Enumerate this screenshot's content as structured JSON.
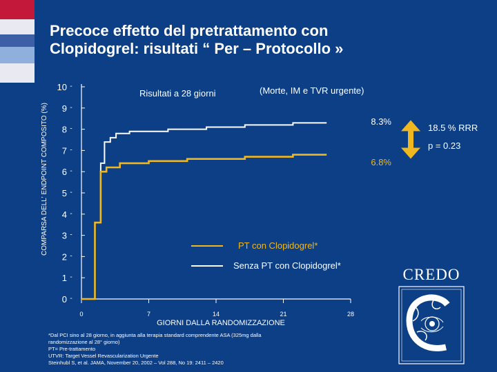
{
  "slide": {
    "title_line1": "Precoce effetto del pretrattamento con",
    "title_line2": "Clopidogrel:  risultati “ Per – Protocollo »",
    "background_color": "#0c3f86",
    "strip_colors": [
      "#c3183a",
      "#e9e9f1",
      "#3c5fa6",
      "#8fb0dc",
      "#e9e9f1"
    ]
  },
  "chart_data": {
    "type": "line",
    "subtitle": "Risultati a 28 giorni",
    "subtitle2": "(Morte, IM e TVR urgente)",
    "xlabel": "GIORNI DALLA RANDOMIZZAZIONE",
    "ylabel": "COMPARSA DELL' ENDPOINT COMPOSITO (%)",
    "xlim": [
      0,
      28
    ],
    "ylim": [
      0,
      10
    ],
    "x_ticks": [
      0,
      7,
      14,
      21,
      28
    ],
    "y_ticks": [
      0,
      1,
      2,
      3,
      4,
      5,
      6,
      7,
      8,
      9,
      10
    ],
    "series": [
      {
        "name": "Senza PT con Clopidogrel*",
        "color": "#ffffff",
        "end_label": "8.3%",
        "points": [
          [
            0,
            0
          ],
          [
            1.4,
            0
          ],
          [
            1.4,
            3.6
          ],
          [
            2.0,
            3.6
          ],
          [
            2.0,
            6.4
          ],
          [
            2.4,
            6.4
          ],
          [
            2.4,
            7.4
          ],
          [
            3.0,
            7.4
          ],
          [
            3.0,
            7.6
          ],
          [
            3.6,
            7.6
          ],
          [
            3.6,
            7.8
          ],
          [
            5.0,
            7.8
          ],
          [
            5.0,
            7.9
          ],
          [
            9.0,
            7.9
          ],
          [
            9.0,
            8.0
          ],
          [
            13.0,
            8.0
          ],
          [
            13.0,
            8.1
          ],
          [
            17.0,
            8.1
          ],
          [
            17.0,
            8.2
          ],
          [
            22.0,
            8.2
          ],
          [
            22.0,
            8.3
          ],
          [
            25.5,
            8.3
          ]
        ]
      },
      {
        "name": "PT con Clopidogrel*",
        "color": "#f0b820",
        "end_label": "6.8%",
        "points": [
          [
            0,
            0
          ],
          [
            1.4,
            0
          ],
          [
            1.4,
            3.6
          ],
          [
            2.0,
            3.6
          ],
          [
            2.0,
            6.0
          ],
          [
            2.6,
            6.0
          ],
          [
            2.6,
            6.2
          ],
          [
            4.0,
            6.2
          ],
          [
            4.0,
            6.4
          ],
          [
            7.0,
            6.4
          ],
          [
            7.0,
            6.5
          ],
          [
            11.0,
            6.5
          ],
          [
            11.0,
            6.6
          ],
          [
            17.0,
            6.6
          ],
          [
            17.0,
            6.7
          ],
          [
            22.0,
            6.7
          ],
          [
            22.0,
            6.8
          ],
          [
            25.5,
            6.8
          ]
        ]
      }
    ],
    "annotation": {
      "rrr": "18.5 % RRR",
      "pvalue": "p = 0.23",
      "arrow_color": "#f0b820",
      "from": 8.3,
      "to": 6.8
    },
    "grid": false,
    "legend_placement": "bottom-center"
  },
  "footnote": {
    "line1": "*Dal PCI sino al 28 giorno, in aggiunta alla terapia standard comprendente ASA (325mg dalla",
    "line2": "randomizzazione al 28° giorno)",
    "line3": "PT= Pre-trattamento",
    "line4": "UTVR: Target Vessel Revascularization Urgente",
    "line5": "Steinhubl S, et al. JAMA, November 20, 2002 – Vol 288, No 19: 2411 – 2420"
  },
  "logo": {
    "text": "CREDO"
  }
}
